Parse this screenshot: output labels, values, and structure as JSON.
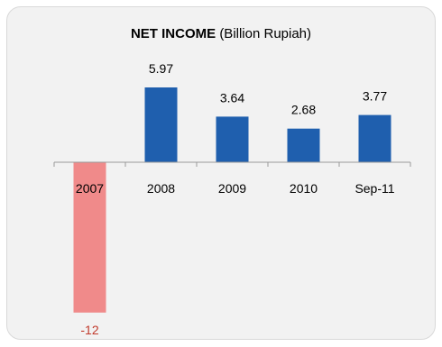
{
  "chart_data": {
    "type": "bar",
    "title": "NET INCOME",
    "subtitle": "(Billion Rupiah)",
    "categories": [
      "2007",
      "2008",
      "2009",
      "2010",
      "Sep-11"
    ],
    "values": [
      -12,
      5.97,
      3.64,
      2.68,
      3.77
    ],
    "value_labels": [
      "-12",
      "5.97",
      "3.64",
      "2.68",
      "3.77"
    ],
    "ylim": [
      -12,
      5.97
    ],
    "grid": false,
    "legend": "none",
    "colors": {
      "positive": "#1f5fae",
      "negative": "#f08a8a",
      "negative_label": "#c0392b",
      "axis": "#999999"
    }
  }
}
